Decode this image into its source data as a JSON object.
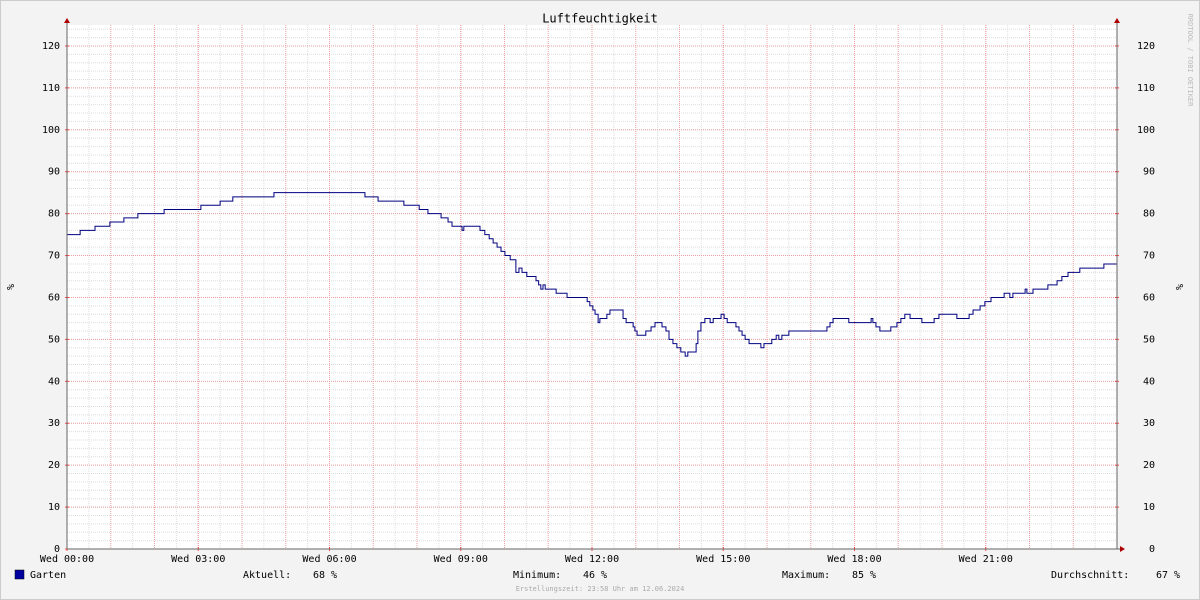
{
  "chart_data": {
    "type": "step",
    "title": "Luftfeuchtigkeit",
    "ylabel": "%",
    "y2label": "%",
    "watermark": "RRDTOOL / TOBI OETIKER",
    "footer": "Erstellungszeit: 23:58 Uhr am 12.06.2024",
    "xlim": [
      0,
      24
    ],
    "xticks": [
      {
        "value": 0,
        "label": "Wed 00:00"
      },
      {
        "value": 3,
        "label": "Wed 03:00"
      },
      {
        "value": 6,
        "label": "Wed 06:00"
      },
      {
        "value": 9,
        "label": "Wed 09:00"
      },
      {
        "value": 12,
        "label": "Wed 12:00"
      },
      {
        "value": 15,
        "label": "Wed 15:00"
      },
      {
        "value": 18,
        "label": "Wed 18:00"
      },
      {
        "value": 21,
        "label": "Wed 21:00"
      }
    ],
    "ylim": [
      0,
      125
    ],
    "yticks": [
      0,
      10,
      20,
      30,
      40,
      50,
      60,
      70,
      80,
      90,
      100,
      110,
      120
    ],
    "y2lim": [
      0,
      125
    ],
    "y2ticks": [
      0,
      10,
      20,
      30,
      40,
      50,
      60,
      70,
      80,
      90,
      100,
      110,
      120
    ],
    "grid": true,
    "series": [
      {
        "name": "Garten",
        "color": "#000080",
        "legend_color": "#0000a0",
        "x": [
          0.0,
          0.3,
          0.64,
          0.98,
          1.3,
          1.62,
          2.22,
          3.06,
          3.5,
          3.79,
          4.73,
          6.81,
          7.11,
          7.7,
          8.05,
          8.25,
          8.55,
          8.71,
          8.8,
          9.03,
          9.07,
          9.44,
          9.55,
          9.65,
          9.74,
          9.83,
          9.92,
          10.01,
          10.13,
          10.26,
          10.33,
          10.4,
          10.51,
          10.72,
          10.78,
          10.83,
          10.88,
          10.93,
          11.18,
          11.43,
          11.89,
          11.95,
          12.02,
          12.07,
          12.14,
          12.18,
          12.34,
          12.41,
          12.71,
          12.78,
          12.94,
          12.98,
          13.03,
          13.23,
          13.35,
          13.44,
          13.6,
          13.69,
          13.76,
          13.85,
          13.94,
          14.03,
          14.13,
          14.19,
          14.38,
          14.42,
          14.49,
          14.58,
          14.7,
          14.77,
          14.95,
          15.02,
          15.09,
          15.29,
          15.36,
          15.43,
          15.5,
          15.59,
          15.86,
          15.93,
          16.11,
          16.21,
          16.27,
          16.34,
          16.5,
          17.37,
          17.44,
          17.51,
          17.87,
          18.38,
          18.42,
          18.49,
          18.58,
          18.83,
          18.97,
          19.06,
          19.15,
          19.27,
          19.54,
          19.82,
          19.93,
          20.34,
          20.62,
          20.71,
          20.87,
          20.98,
          21.12,
          21.42,
          21.55,
          21.62,
          21.9,
          21.94,
          22.08,
          22.42,
          22.63,
          22.74,
          22.88,
          23.15,
          23.7,
          24.0
        ],
        "values": [
          75,
          76,
          77,
          78,
          79,
          80,
          81,
          82,
          83,
          84,
          85,
          84,
          83,
          82,
          81,
          80,
          79,
          78,
          77,
          76,
          77,
          76,
          75,
          74,
          73,
          72,
          71,
          70,
          69,
          66,
          67,
          66,
          65,
          64,
          63,
          62,
          63,
          62,
          61,
          60,
          59,
          58,
          57,
          56,
          54,
          55,
          56,
          57,
          55,
          54,
          53,
          52,
          51,
          52,
          53,
          54,
          53,
          52,
          50,
          49,
          48,
          47,
          46,
          47,
          49,
          52,
          54,
          55,
          54,
          55,
          56,
          55,
          54,
          53,
          52,
          51,
          50,
          49,
          48,
          49,
          50,
          51,
          50,
          51,
          52,
          53,
          54,
          55,
          54,
          55,
          54,
          53,
          52,
          53,
          54,
          55,
          56,
          55,
          54,
          55,
          56,
          55,
          56,
          57,
          58,
          59,
          60,
          61,
          60,
          61,
          62,
          61,
          62,
          63,
          64,
          65,
          66,
          67,
          68,
          68
        ]
      }
    ],
    "stats": [
      {
        "label": "Aktuell:",
        "value": "68 %"
      },
      {
        "label": "Minimum:",
        "value": "46 %"
      },
      {
        "label": "Maximum:",
        "value": "85 %"
      },
      {
        "label": "Durchschnitt:",
        "value": "67 %"
      }
    ]
  }
}
